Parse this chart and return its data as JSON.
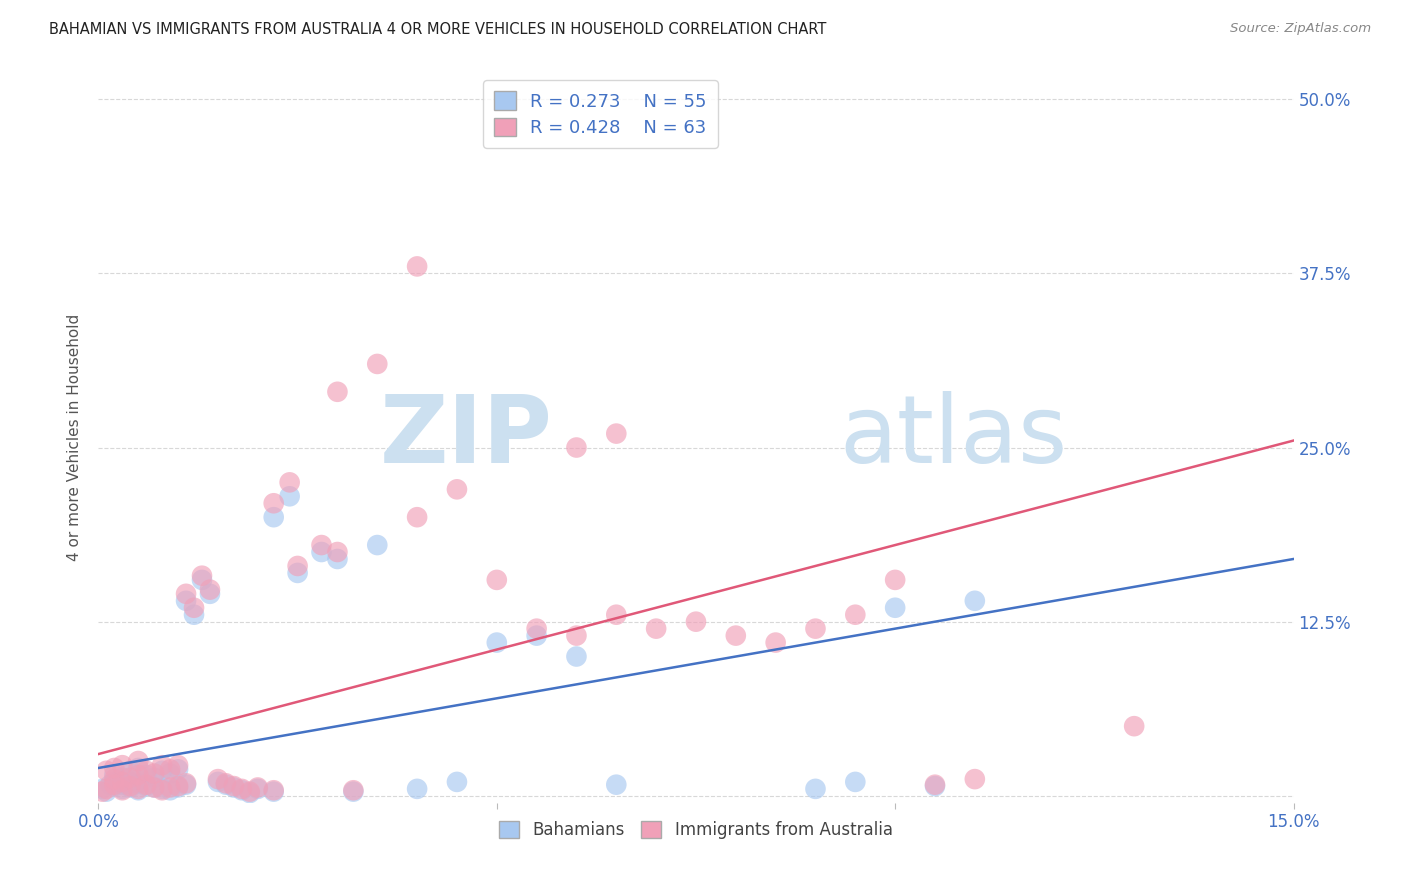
{
  "title": "BAHAMIAN VS IMMIGRANTS FROM AUSTRALIA 4 OR MORE VEHICLES IN HOUSEHOLD CORRELATION CHART",
  "source": "Source: ZipAtlas.com",
  "ylabel": "4 or more Vehicles in Household",
  "xlim": [
    0.0,
    0.15
  ],
  "ylim": [
    -0.005,
    0.52
  ],
  "legend_entries": [
    {
      "label": "Bahamians",
      "R": 0.273,
      "N": 55
    },
    {
      "label": "Immigrants from Australia",
      "R": 0.428,
      "N": 63
    }
  ],
  "blue_scatter_color": "#a8c8f0",
  "pink_scatter_color": "#f0a0b8",
  "blue_line_color": "#4472c4",
  "pink_line_color": "#e05878",
  "tick_color": "#4472c4",
  "grid_color": "#d8d8d8",
  "background_color": "#ffffff",
  "watermark_color": "#cce0f0",
  "blue_x": [
    0.0005,
    0.001,
    0.0015,
    0.002,
    0.002,
    0.002,
    0.003,
    0.003,
    0.003,
    0.004,
    0.004,
    0.004,
    0.005,
    0.005,
    0.005,
    0.006,
    0.006,
    0.007,
    0.007,
    0.008,
    0.008,
    0.009,
    0.009,
    0.01,
    0.01,
    0.011,
    0.011,
    0.012,
    0.013,
    0.014,
    0.015,
    0.016,
    0.017,
    0.018,
    0.019,
    0.02,
    0.022,
    0.025,
    0.028,
    0.032,
    0.022,
    0.024,
    0.03,
    0.035,
    0.04,
    0.045,
    0.05,
    0.055,
    0.06,
    0.065,
    0.09,
    0.095,
    0.1,
    0.105,
    0.11
  ],
  "blue_y": [
    0.005,
    0.003,
    0.008,
    0.007,
    0.01,
    0.015,
    0.005,
    0.008,
    0.013,
    0.006,
    0.01,
    0.018,
    0.004,
    0.009,
    0.02,
    0.007,
    0.015,
    0.006,
    0.013,
    0.005,
    0.018,
    0.004,
    0.016,
    0.006,
    0.019,
    0.008,
    0.14,
    0.13,
    0.155,
    0.145,
    0.01,
    0.008,
    0.006,
    0.004,
    0.002,
    0.005,
    0.003,
    0.16,
    0.175,
    0.003,
    0.2,
    0.215,
    0.17,
    0.18,
    0.005,
    0.01,
    0.11,
    0.115,
    0.1,
    0.008,
    0.005,
    0.01,
    0.135,
    0.007,
    0.14
  ],
  "pink_x": [
    0.0005,
    0.001,
    0.001,
    0.002,
    0.002,
    0.002,
    0.003,
    0.003,
    0.003,
    0.004,
    0.004,
    0.005,
    0.005,
    0.005,
    0.006,
    0.006,
    0.007,
    0.007,
    0.008,
    0.008,
    0.009,
    0.009,
    0.01,
    0.01,
    0.011,
    0.011,
    0.012,
    0.013,
    0.014,
    0.015,
    0.016,
    0.017,
    0.018,
    0.019,
    0.02,
    0.022,
    0.025,
    0.028,
    0.03,
    0.032,
    0.022,
    0.024,
    0.03,
    0.035,
    0.04,
    0.06,
    0.065,
    0.07,
    0.075,
    0.08,
    0.085,
    0.09,
    0.095,
    0.1,
    0.105,
    0.11,
    0.04,
    0.045,
    0.05,
    0.055,
    0.06,
    0.065,
    0.13
  ],
  "pink_y": [
    0.003,
    0.005,
    0.018,
    0.008,
    0.012,
    0.02,
    0.004,
    0.01,
    0.022,
    0.007,
    0.013,
    0.005,
    0.015,
    0.025,
    0.008,
    0.018,
    0.006,
    0.016,
    0.004,
    0.022,
    0.006,
    0.019,
    0.007,
    0.022,
    0.009,
    0.145,
    0.135,
    0.158,
    0.148,
    0.012,
    0.009,
    0.007,
    0.005,
    0.003,
    0.006,
    0.004,
    0.165,
    0.18,
    0.175,
    0.004,
    0.21,
    0.225,
    0.29,
    0.31,
    0.38,
    0.115,
    0.13,
    0.12,
    0.125,
    0.115,
    0.11,
    0.12,
    0.13,
    0.155,
    0.008,
    0.012,
    0.2,
    0.22,
    0.155,
    0.12,
    0.25,
    0.26,
    0.05
  ]
}
